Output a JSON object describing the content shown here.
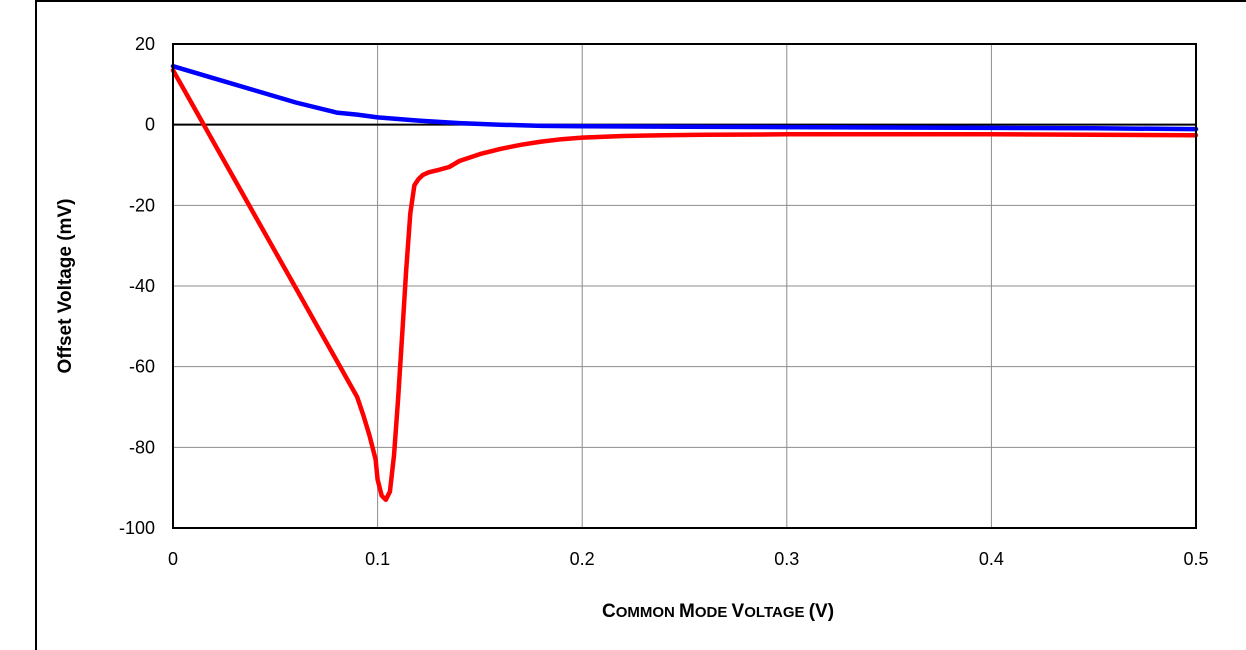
{
  "chart_data": {
    "type": "line",
    "title": "",
    "xlabel": "COMMON MODE VOLTAGE (V)",
    "xlabel_parts": [
      {
        "text": "C",
        "size": "big"
      },
      {
        "text": "OMMON ",
        "size": "small"
      },
      {
        "text": "M",
        "size": "big"
      },
      {
        "text": "ODE ",
        "size": "small"
      },
      {
        "text": "V",
        "size": "big"
      },
      {
        "text": "OLTAGE ",
        "size": "small"
      },
      {
        "text": "(V)",
        "size": "big"
      }
    ],
    "ylabel": "Offset Voltage (mV)",
    "xlim": [
      0,
      0.5
    ],
    "ylim": [
      -100,
      20
    ],
    "xticks": [
      0,
      0.1,
      0.2,
      0.3,
      0.4,
      0.5
    ],
    "xtick_labels": [
      "0",
      "0.1",
      "0.2",
      "0.3",
      "0.4",
      "0.5"
    ],
    "yticks": [
      20,
      0,
      -20,
      -40,
      -60,
      -80,
      -100
    ],
    "ytick_labels": [
      "20",
      "0",
      "-20",
      "-40",
      "-60",
      "-80",
      "-100"
    ],
    "grid": true,
    "legend": "none",
    "series": [
      {
        "color": "#ff0000",
        "x": [
          0,
          0.01,
          0.02,
          0.03,
          0.04,
          0.05,
          0.06,
          0.07,
          0.08,
          0.09,
          0.093,
          0.096,
          0.099,
          0.1,
          0.102,
          0.104,
          0.106,
          0.108,
          0.11,
          0.112,
          0.114,
          0.116,
          0.118,
          0.12,
          0.122,
          0.125,
          0.13,
          0.135,
          0.14,
          0.15,
          0.16,
          0.17,
          0.18,
          0.19,
          0.2,
          0.22,
          0.24,
          0.26,
          0.3,
          0.35,
          0.4,
          0.45,
          0.5
        ],
        "y": [
          13.5,
          4.5,
          -4.5,
          -13.5,
          -22.5,
          -31.5,
          -40.5,
          -49.5,
          -58.5,
          -67.5,
          -72,
          -77,
          -83,
          -88,
          -92,
          -93,
          -91,
          -82,
          -68,
          -52,
          -36,
          -22,
          -15,
          -13.5,
          -12.5,
          -11.8,
          -11.2,
          -10.5,
          -9,
          -7.3,
          -6,
          -5,
          -4.2,
          -3.6,
          -3.2,
          -2.8,
          -2.6,
          -2.5,
          -2.4,
          -2.4,
          -2.4,
          -2.5,
          -2.6
        ]
      },
      {
        "color": "#0000ff",
        "x": [
          0,
          0.02,
          0.04,
          0.06,
          0.08,
          0.09,
          0.1,
          0.11,
          0.12,
          0.14,
          0.16,
          0.18,
          0.2,
          0.25,
          0.3,
          0.35,
          0.4,
          0.45,
          0.5
        ],
        "y": [
          14.5,
          11.5,
          8.5,
          5.5,
          3,
          2.5,
          1.8,
          1.4,
          1,
          0.4,
          0,
          -0.3,
          -0.4,
          -0.5,
          -0.6,
          -0.7,
          -0.8,
          -0.9,
          -1.1
        ]
      }
    ]
  }
}
